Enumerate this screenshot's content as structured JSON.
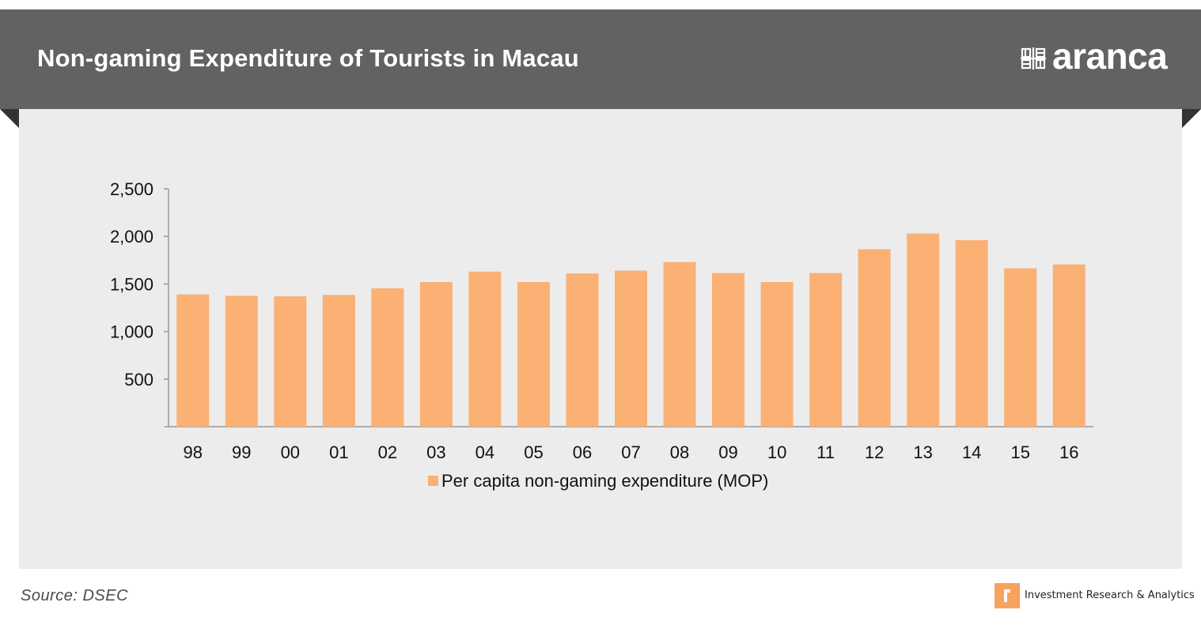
{
  "header": {
    "title": "Non-gaming Expenditure of Tourists in Macau",
    "logo_text": "aranca"
  },
  "footer": {
    "source": "Source: DSEC",
    "brand_tagline": "Investment  Research & Analytics"
  },
  "chart_data": {
    "type": "bar",
    "categories": [
      "98",
      "99",
      "00",
      "01",
      "02",
      "03",
      "04",
      "05",
      "06",
      "07",
      "08",
      "09",
      "10",
      "11",
      "12",
      "13",
      "14",
      "15",
      "16"
    ],
    "series": [
      {
        "name": "Per capita non-gaming expenditure (MOP)",
        "color": "#fbb074",
        "values": [
          1390,
          1375,
          1370,
          1385,
          1455,
          1520,
          1630,
          1520,
          1610,
          1640,
          1730,
          1615,
          1520,
          1615,
          1865,
          2030,
          1960,
          1665,
          1705
        ]
      }
    ],
    "ylim": [
      0,
      2500
    ],
    "yticks": [
      500,
      1000,
      1500,
      2000,
      2500
    ],
    "ytick_labels": [
      "500",
      "1,000",
      "1,500",
      "2,000",
      "2,500"
    ],
    "grid": false,
    "legend_position": "bottom"
  }
}
